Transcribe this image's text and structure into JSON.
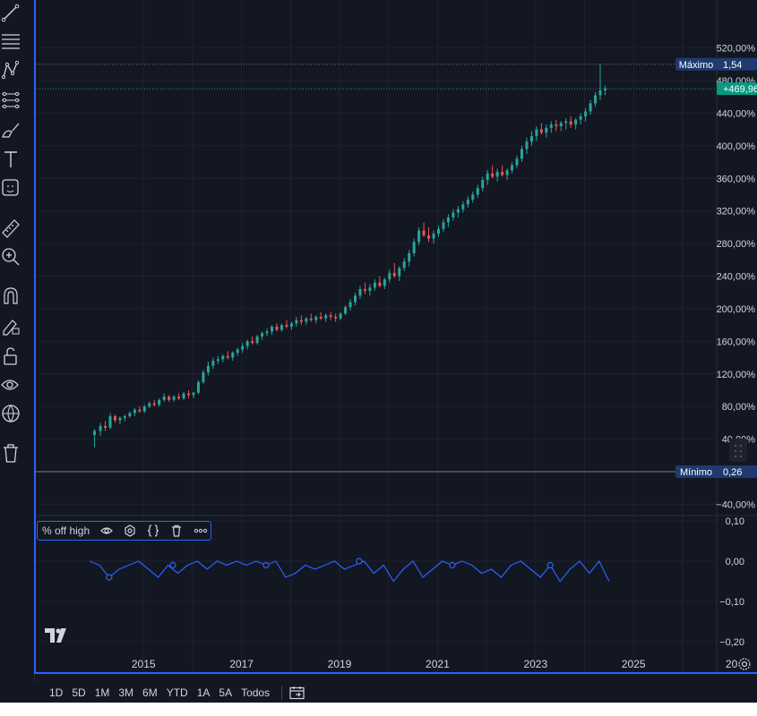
{
  "left_toolbar": {
    "icons": [
      "trend-line-icon",
      "horizontal-lines-icon",
      "pattern-icon",
      "fib-retracement-icon",
      "brush-icon",
      "text-icon",
      "emoji-icon",
      "ruler-icon",
      "zoom-in-icon",
      "magnet-icon",
      "lock-drawing-icon",
      "unlock-icon",
      "eye-icon",
      "globe-icon",
      "trash-icon"
    ]
  },
  "price_tags": {
    "max_label": "Máximo",
    "max_value": "1,54",
    "last_value": "+469,96",
    "min_label": "Mínimo",
    "min_value": "0,26"
  },
  "oscillator": {
    "name": "% off high",
    "legend_icons": [
      "eye-icon",
      "settings-icon",
      "source-code-icon",
      "trash-icon",
      "more-icon"
    ]
  },
  "range_buttons": [
    "1D",
    "5D",
    "1M",
    "3M",
    "6M",
    "YTD",
    "1A",
    "5A",
    "Todos"
  ],
  "colors": {
    "up": "#26a69a",
    "down": "#ef5350",
    "oscillator": "#2962ff",
    "last_price": "#089981",
    "grid": "#1e222d",
    "text": "#d1d4dc"
  },
  "chart_data": [
    {
      "type": "candlestick",
      "title": "",
      "y_unit": "percent",
      "y_ticks": [
        "520,00%",
        "480,00%",
        "440,00%",
        "400,00%",
        "360,00%",
        "320,00%",
        "280,00%",
        "240,00%",
        "200,00%",
        "160,00%",
        "120,00%",
        "80,00%",
        "40,00%",
        "−40,00%"
      ],
      "ylim": [
        -48,
        518
      ],
      "x_ticks": [
        "2015",
        "2017",
        "2019",
        "2021",
        "2023",
        "2025",
        "20"
      ],
      "xlim": [
        2013.9,
        2026.3
      ],
      "max_line": 500,
      "last_line": 469.96,
      "min_line": 0,
      "series": [
        [
          2014.0,
          45,
          52,
          30,
          50
        ],
        [
          2014.12,
          50,
          60,
          44,
          56
        ],
        [
          2014.22,
          56,
          62,
          50,
          54
        ],
        [
          2014.32,
          54,
          72,
          52,
          68
        ],
        [
          2014.42,
          68,
          70,
          60,
          63
        ],
        [
          2014.52,
          63,
          68,
          58,
          66
        ],
        [
          2014.62,
          66,
          70,
          62,
          68
        ],
        [
          2014.72,
          68,
          74,
          66,
          72
        ],
        [
          2014.82,
          72,
          78,
          68,
          76
        ],
        [
          2014.92,
          76,
          80,
          72,
          74
        ],
        [
          2015.02,
          74,
          82,
          72,
          80
        ],
        [
          2015.12,
          80,
          86,
          78,
          84
        ],
        [
          2015.22,
          84,
          88,
          80,
          82
        ],
        [
          2015.32,
          82,
          90,
          80,
          88
        ],
        [
          2015.42,
          88,
          96,
          86,
          92
        ],
        [
          2015.52,
          92,
          94,
          86,
          88
        ],
        [
          2015.62,
          88,
          94,
          86,
          92
        ],
        [
          2015.72,
          92,
          96,
          88,
          90
        ],
        [
          2015.82,
          90,
          98,
          88,
          96
        ],
        [
          2015.92,
          96,
          100,
          90,
          94
        ],
        [
          2016.02,
          94,
          98,
          90,
          97
        ],
        [
          2016.12,
          97,
          112,
          95,
          110
        ],
        [
          2016.22,
          110,
          125,
          108,
          122
        ],
        [
          2016.32,
          122,
          135,
          118,
          130
        ],
        [
          2016.42,
          130,
          140,
          126,
          136
        ],
        [
          2016.52,
          136,
          142,
          132,
          138
        ],
        [
          2016.62,
          138,
          144,
          134,
          142
        ],
        [
          2016.72,
          142,
          148,
          138,
          140
        ],
        [
          2016.82,
          140,
          148,
          136,
          146
        ],
        [
          2016.92,
          146,
          152,
          142,
          150
        ],
        [
          2017.02,
          150,
          158,
          146,
          154
        ],
        [
          2017.12,
          154,
          162,
          150,
          160
        ],
        [
          2017.22,
          160,
          166,
          156,
          158
        ],
        [
          2017.32,
          158,
          168,
          156,
          166
        ],
        [
          2017.42,
          166,
          172,
          162,
          170
        ],
        [
          2017.52,
          170,
          176,
          166,
          172
        ],
        [
          2017.62,
          172,
          180,
          168,
          178
        ],
        [
          2017.72,
          178,
          182,
          172,
          174
        ],
        [
          2017.82,
          174,
          182,
          172,
          180
        ],
        [
          2017.92,
          180,
          186,
          176,
          178
        ],
        [
          2018.02,
          178,
          184,
          174,
          182
        ],
        [
          2018.12,
          182,
          190,
          178,
          186
        ],
        [
          2018.22,
          186,
          192,
          180,
          184
        ],
        [
          2018.32,
          184,
          190,
          180,
          188
        ],
        [
          2018.42,
          188,
          194,
          184,
          186
        ],
        [
          2018.52,
          186,
          192,
          182,
          190
        ],
        [
          2018.62,
          190,
          196,
          186,
          188
        ],
        [
          2018.72,
          188,
          194,
          184,
          192
        ],
        [
          2018.82,
          192,
          196,
          186,
          190
        ],
        [
          2018.92,
          190,
          194,
          184,
          188
        ],
        [
          2019.02,
          188,
          196,
          186,
          194
        ],
        [
          2019.12,
          194,
          204,
          192,
          202
        ],
        [
          2019.22,
          202,
          212,
          198,
          208
        ],
        [
          2019.32,
          208,
          220,
          204,
          216
        ],
        [
          2019.42,
          216,
          228,
          212,
          224
        ],
        [
          2019.52,
          224,
          232,
          218,
          222
        ],
        [
          2019.62,
          222,
          230,
          216,
          226
        ],
        [
          2019.72,
          226,
          236,
          222,
          232
        ],
        [
          2019.82,
          232,
          240,
          226,
          228
        ],
        [
          2019.92,
          228,
          238,
          224,
          236
        ],
        [
          2020.02,
          236,
          248,
          232,
          244
        ],
        [
          2020.12,
          244,
          256,
          238,
          240
        ],
        [
          2020.22,
          240,
          252,
          234,
          250
        ],
        [
          2020.32,
          250,
          262,
          246,
          258
        ],
        [
          2020.42,
          258,
          272,
          252,
          268
        ],
        [
          2020.52,
          268,
          286,
          264,
          282
        ],
        [
          2020.62,
          282,
          300,
          278,
          296
        ],
        [
          2020.72,
          296,
          306,
          288,
          290
        ],
        [
          2020.82,
          290,
          300,
          282,
          286
        ],
        [
          2020.92,
          286,
          296,
          280,
          292
        ],
        [
          2021.02,
          292,
          302,
          288,
          298
        ],
        [
          2021.12,
          298,
          310,
          294,
          306
        ],
        [
          2021.22,
          306,
          316,
          300,
          312
        ],
        [
          2021.32,
          312,
          322,
          308,
          318
        ],
        [
          2021.42,
          318,
          326,
          312,
          322
        ],
        [
          2021.52,
          322,
          332,
          318,
          328
        ],
        [
          2021.62,
          328,
          338,
          324,
          334
        ],
        [
          2021.72,
          334,
          344,
          330,
          340
        ],
        [
          2021.82,
          340,
          352,
          336,
          348
        ],
        [
          2021.92,
          348,
          362,
          344,
          358
        ],
        [
          2022.02,
          358,
          370,
          352,
          366
        ],
        [
          2022.12,
          366,
          376,
          360,
          362
        ],
        [
          2022.22,
          362,
          372,
          356,
          368
        ],
        [
          2022.32,
          368,
          376,
          362,
          364
        ],
        [
          2022.42,
          364,
          372,
          358,
          370
        ],
        [
          2022.52,
          370,
          380,
          366,
          376
        ],
        [
          2022.62,
          376,
          388,
          372,
          384
        ],
        [
          2022.72,
          384,
          400,
          380,
          396
        ],
        [
          2022.82,
          396,
          410,
          390,
          405
        ],
        [
          2022.92,
          405,
          418,
          400,
          412
        ],
        [
          2023.02,
          412,
          424,
          406,
          420
        ],
        [
          2023.12,
          420,
          428,
          414,
          416
        ],
        [
          2023.22,
          416,
          426,
          410,
          422
        ],
        [
          2023.32,
          422,
          430,
          416,
          426
        ],
        [
          2023.42,
          426,
          432,
          418,
          424
        ],
        [
          2023.52,
          424,
          430,
          418,
          428
        ],
        [
          2023.62,
          428,
          434,
          420,
          430
        ],
        [
          2023.72,
          430,
          436,
          422,
          426
        ],
        [
          2023.82,
          426,
          434,
          420,
          432
        ],
        [
          2023.92,
          432,
          440,
          426,
          436
        ],
        [
          2024.02,
          436,
          446,
          430,
          442
        ],
        [
          2024.12,
          442,
          456,
          438,
          452
        ],
        [
          2024.22,
          452,
          466,
          448,
          462
        ],
        [
          2024.32,
          462,
          500,
          456,
          468
        ],
        [
          2024.42,
          468,
          474,
          462,
          470
        ]
      ]
    },
    {
      "type": "line",
      "title": "% off high",
      "y_ticks": [
        "0,10",
        "0,00",
        "−0,10",
        "−0,20"
      ],
      "ylim": [
        -0.22,
        0.11
      ],
      "x": [
        2013.9,
        2014.1,
        2014.3,
        2014.5,
        2014.7,
        2014.9,
        2015.1,
        2015.3,
        2015.5,
        2015.7,
        2015.9,
        2016.1,
        2016.3,
        2016.5,
        2016.7,
        2016.9,
        2017.1,
        2017.3,
        2017.5,
        2017.7,
        2017.9,
        2018.1,
        2018.3,
        2018.5,
        2018.7,
        2018.9,
        2019.1,
        2019.3,
        2019.5,
        2019.7,
        2019.9,
        2020.1,
        2020.3,
        2020.5,
        2020.7,
        2020.9,
        2021.1,
        2021.3,
        2021.5,
        2021.7,
        2021.9,
        2022.1,
        2022.3,
        2022.5,
        2022.7,
        2022.9,
        2023.1,
        2023.3,
        2023.5,
        2023.7,
        2023.9,
        2024.1,
        2024.3,
        2024.5
      ],
      "values": [
        0.0,
        -0.01,
        -0.04,
        -0.02,
        -0.01,
        0.0,
        -0.02,
        -0.04,
        -0.01,
        -0.03,
        -0.01,
        0.0,
        -0.02,
        0.0,
        -0.01,
        0.0,
        -0.01,
        0.0,
        -0.01,
        0.0,
        -0.04,
        -0.03,
        -0.01,
        -0.02,
        -0.01,
        0.0,
        -0.02,
        -0.01,
        0.0,
        -0.03,
        -0.01,
        -0.05,
        -0.02,
        0.0,
        -0.04,
        -0.02,
        0.0,
        -0.01,
        0.0,
        -0.01,
        -0.03,
        -0.02,
        -0.04,
        -0.01,
        0.0,
        -0.02,
        -0.04,
        -0.01,
        -0.05,
        -0.02,
        0.0,
        -0.03,
        0.0,
        -0.05
      ]
    }
  ]
}
